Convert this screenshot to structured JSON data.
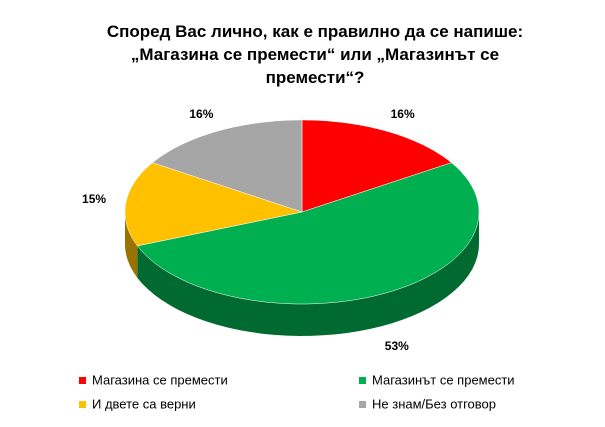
{
  "chart_data": {
    "type": "pie3d",
    "title": "Според Вас лично, как е правилно да се напише: „Магазина се премести“ или „Магазинът се премести“?",
    "categories": [
      "Магазина се премести",
      "Магазинът се премести",
      "И двете са верни",
      "Не знам/Без отговор"
    ],
    "values": [
      16,
      53,
      15,
      16
    ],
    "value_labels": [
      "16%",
      "53%",
      "15%",
      "16%"
    ],
    "colors": [
      "#ff0000",
      "#00b050",
      "#ffc000",
      "#a6a6a6"
    ],
    "legend": "bottom"
  }
}
